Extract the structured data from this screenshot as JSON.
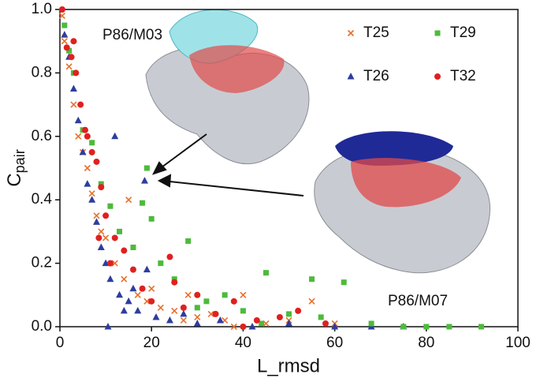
{
  "chart_data": {
    "type": "scatter",
    "xlabel": "L_rmsd",
    "ylabel": "C",
    "ylabel_sub": "pair",
    "annotations": [
      "P86/M03",
      "P86/M07"
    ],
    "xlim": [
      0,
      100
    ],
    "ylim": [
      0,
      1.0
    ],
    "xticks": [
      0,
      20,
      40,
      60,
      80,
      100
    ],
    "yticks": [
      {
        "value": 0,
        "label": "0.0"
      },
      0.2,
      0.4,
      0.6,
      0.8,
      {
        "value": 1.0,
        "label": "1.0"
      }
    ],
    "legend": "upper right",
    "series": [
      {
        "name": "T25",
        "color": "#e8702a",
        "marker": "x",
        "x": [
          0.5,
          1,
          2,
          3,
          4,
          5,
          6,
          7,
          8,
          9,
          10,
          12,
          14,
          15,
          17,
          19,
          20,
          22,
          25,
          28,
          30,
          33,
          36,
          40,
          45,
          50,
          55,
          60,
          38,
          27
        ],
        "values": [
          0.98,
          0.9,
          0.82,
          0.7,
          0.6,
          0.55,
          0.5,
          0.42,
          0.35,
          0.3,
          0.28,
          0.2,
          0.15,
          0.4,
          0.1,
          0.08,
          0.12,
          0.06,
          0.05,
          0.1,
          0.03,
          0.04,
          0.02,
          0.1,
          0.01,
          0.02,
          0.08,
          0.01,
          0.0,
          0.02
        ]
      },
      {
        "name": "T26",
        "color": "#2e3d9e",
        "marker": "triangle",
        "x": [
          1,
          2,
          3,
          4,
          5,
          6,
          7,
          8,
          9,
          10,
          11,
          12,
          13,
          15,
          17,
          18.5,
          19,
          21,
          24,
          27,
          30,
          35,
          42,
          50,
          60,
          68,
          75,
          10.5,
          14,
          16
        ],
        "values": [
          0.92,
          0.85,
          0.75,
          0.65,
          0.55,
          0.45,
          0.4,
          0.33,
          0.25,
          0.2,
          0.15,
          0.6,
          0.1,
          0.08,
          0.05,
          0.46,
          0.18,
          0.03,
          0.02,
          0.04,
          0.01,
          0.02,
          0.0,
          0.01,
          0.0,
          0.0,
          0.0,
          0.0,
          0.05,
          0.12
        ]
      },
      {
        "name": "T29",
        "color": "#4cbb3a",
        "marker": "square",
        "x": [
          1,
          2,
          3,
          5,
          7,
          9,
          11,
          13,
          16,
          18,
          20,
          22,
          25,
          28,
          32,
          36,
          40,
          45,
          50,
          55,
          57,
          62,
          68,
          75,
          80,
          85,
          92,
          19,
          30,
          44
        ],
        "values": [
          0.95,
          0.87,
          0.8,
          0.62,
          0.58,
          0.45,
          0.38,
          0.3,
          0.25,
          0.39,
          0.34,
          0.2,
          0.15,
          0.27,
          0.08,
          0.1,
          0.05,
          0.17,
          0.04,
          0.15,
          0.03,
          0.14,
          0.01,
          0.0,
          0.0,
          0.0,
          0.0,
          0.5,
          0.06,
          0.01
        ]
      },
      {
        "name": "T32",
        "color": "#e0201f",
        "marker": "circle",
        "x": [
          0.5,
          1.5,
          2.5,
          3.5,
          4.5,
          5.5,
          7,
          8,
          9,
          10,
          12,
          14,
          16,
          18,
          20,
          24,
          27,
          30,
          34,
          38,
          43,
          48,
          52,
          58,
          3,
          6,
          8.5,
          11,
          25,
          40
        ],
        "values": [
          1.0,
          0.88,
          0.85,
          0.8,
          0.7,
          0.62,
          0.55,
          0.52,
          0.44,
          0.35,
          0.28,
          0.24,
          0.18,
          0.12,
          0.08,
          0.22,
          0.06,
          0.1,
          0.04,
          0.08,
          0.02,
          0.03,
          0.05,
          0.01,
          0.9,
          0.6,
          0.28,
          0.2,
          0.14,
          0.0
        ]
      }
    ]
  }
}
